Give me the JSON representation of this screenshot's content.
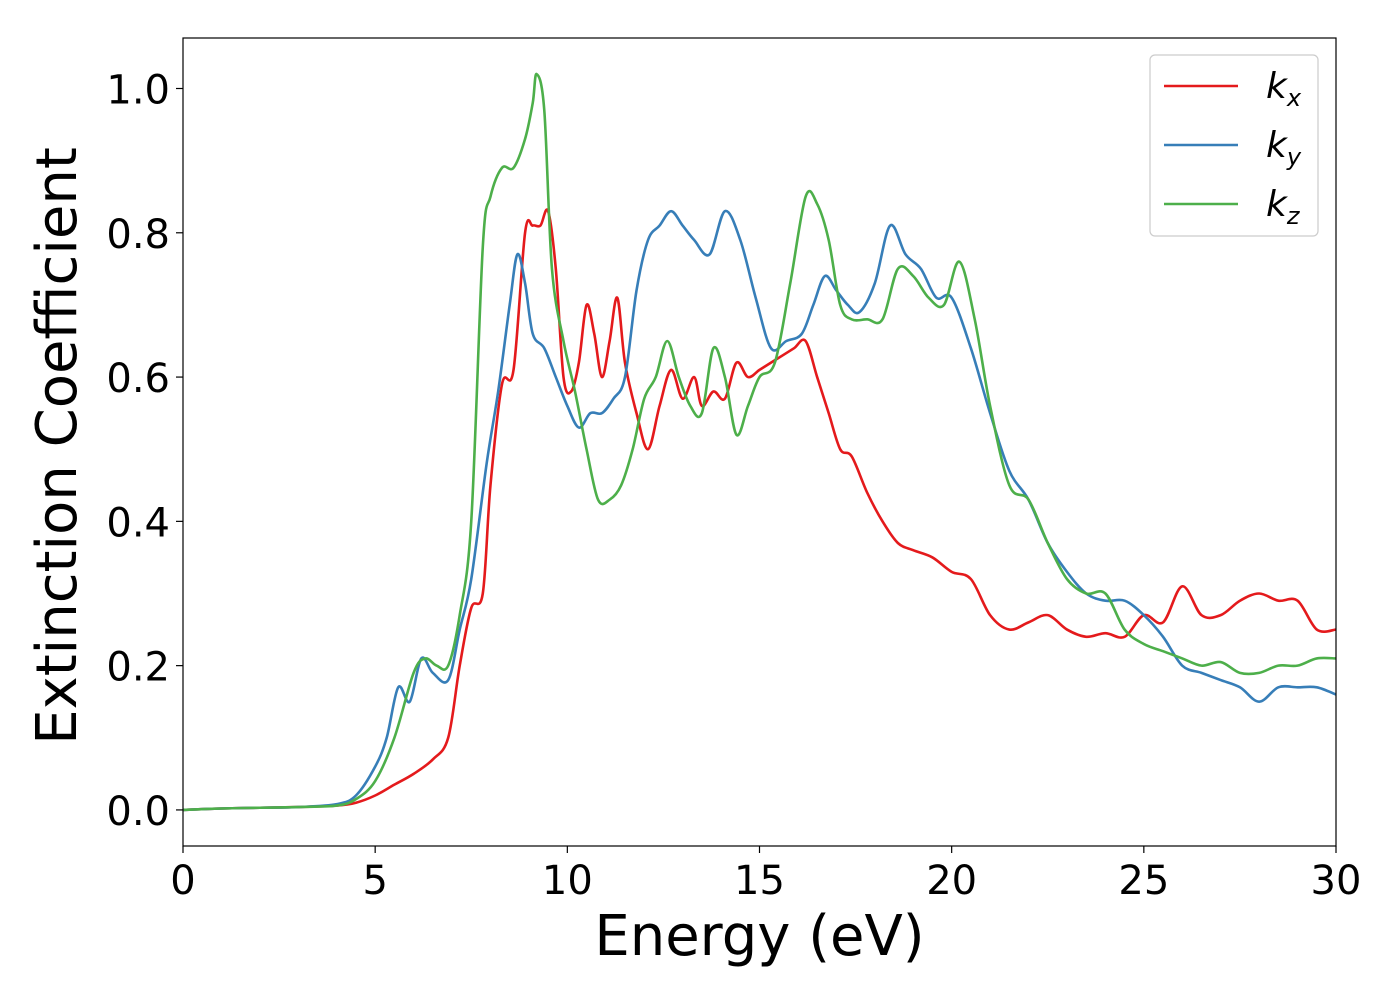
{
  "chart_data": {
    "type": "line",
    "title": "",
    "xlabel": "Energy (eV)",
    "ylabel": "Extinction Coefficient",
    "xlim": [
      0,
      30
    ],
    "ylim": [
      -0.05,
      1.07
    ],
    "xticks": [
      0,
      5,
      10,
      15,
      20,
      25,
      30
    ],
    "yticks": [
      0.0,
      0.2,
      0.4,
      0.6,
      0.8,
      1.0
    ],
    "xtick_labels": [
      "0",
      "5",
      "10",
      "15",
      "20",
      "25",
      "30"
    ],
    "ytick_labels": [
      "0.0",
      "0.2",
      "0.4",
      "0.6",
      "0.8",
      "1.0"
    ],
    "grid": false,
    "legend_position": "top-right",
    "series": [
      {
        "name": "k_x",
        "legend_base": "k",
        "legend_sub": "x",
        "color": "#e41a1c",
        "x": [
          0,
          1,
          2,
          3,
          4,
          4.5,
          5,
          5.5,
          6,
          6.5,
          6.9,
          7.2,
          7.5,
          7.8,
          8,
          8.3,
          8.6,
          8.9,
          9.1,
          9.3,
          9.5,
          9.7,
          9.9,
          10.1,
          10.3,
          10.5,
          10.7,
          10.9,
          11.1,
          11.3,
          11.5,
          11.8,
          12.1,
          12.4,
          12.7,
          13,
          13.3,
          13.5,
          13.8,
          14.1,
          14.4,
          14.7,
          15,
          15.3,
          15.6,
          15.9,
          16.2,
          16.5,
          16.8,
          17.1,
          17.4,
          17.8,
          18.2,
          18.6,
          19,
          19.5,
          20,
          20.5,
          21,
          21.5,
          22,
          22.5,
          23,
          23.5,
          24,
          24.5,
          25,
          25.5,
          26,
          26.5,
          27,
          27.5,
          28,
          28.5,
          29,
          29.5,
          30
        ],
        "y": [
          0.0,
          0.002,
          0.003,
          0.004,
          0.006,
          0.01,
          0.02,
          0.035,
          0.05,
          0.07,
          0.1,
          0.2,
          0.28,
          0.3,
          0.45,
          0.59,
          0.61,
          0.8,
          0.81,
          0.81,
          0.83,
          0.75,
          0.6,
          0.58,
          0.62,
          0.7,
          0.66,
          0.6,
          0.65,
          0.71,
          0.62,
          0.55,
          0.5,
          0.56,
          0.61,
          0.57,
          0.6,
          0.56,
          0.58,
          0.57,
          0.62,
          0.6,
          0.61,
          0.62,
          0.63,
          0.64,
          0.65,
          0.6,
          0.55,
          0.5,
          0.49,
          0.44,
          0.4,
          0.37,
          0.36,
          0.35,
          0.33,
          0.32,
          0.27,
          0.25,
          0.26,
          0.27,
          0.25,
          0.24,
          0.245,
          0.24,
          0.27,
          0.26,
          0.31,
          0.27,
          0.27,
          0.29,
          0.3,
          0.29,
          0.29,
          0.25,
          0.25
        ]
      },
      {
        "name": "k_y",
        "legend_base": "k",
        "legend_sub": "y",
        "color": "#377eb8",
        "x": [
          0,
          1,
          2,
          3,
          4,
          4.5,
          5,
          5.3,
          5.6,
          5.9,
          6.2,
          6.5,
          6.9,
          7.2,
          7.5,
          7.9,
          8.2,
          8.5,
          8.7,
          8.9,
          9.1,
          9.4,
          9.7,
          10,
          10.3,
          10.6,
          10.9,
          11.2,
          11.5,
          11.8,
          12.1,
          12.4,
          12.7,
          13,
          13.3,
          13.7,
          14.1,
          14.5,
          14.9,
          15.3,
          15.7,
          16.1,
          16.4,
          16.7,
          17,
          17.3,
          17.6,
          18,
          18.4,
          18.8,
          19.2,
          19.6,
          20,
          20.5,
          21,
          21.5,
          22,
          22.5,
          23,
          23.5,
          24,
          24.5,
          25,
          25.5,
          26,
          26.5,
          27,
          27.5,
          28,
          28.5,
          29,
          29.5,
          30
        ],
        "y": [
          0.0,
          0.002,
          0.003,
          0.004,
          0.008,
          0.02,
          0.06,
          0.1,
          0.17,
          0.15,
          0.21,
          0.19,
          0.18,
          0.25,
          0.32,
          0.48,
          0.58,
          0.7,
          0.77,
          0.73,
          0.66,
          0.64,
          0.6,
          0.56,
          0.53,
          0.55,
          0.55,
          0.57,
          0.6,
          0.72,
          0.79,
          0.81,
          0.83,
          0.81,
          0.79,
          0.77,
          0.83,
          0.79,
          0.71,
          0.64,
          0.65,
          0.66,
          0.7,
          0.74,
          0.72,
          0.7,
          0.69,
          0.73,
          0.81,
          0.77,
          0.75,
          0.71,
          0.71,
          0.64,
          0.55,
          0.47,
          0.43,
          0.37,
          0.33,
          0.3,
          0.29,
          0.29,
          0.27,
          0.24,
          0.2,
          0.19,
          0.18,
          0.17,
          0.15,
          0.17,
          0.17,
          0.17,
          0.16
        ]
      },
      {
        "name": "k_z",
        "legend_base": "k",
        "legend_sub": "z",
        "color": "#4daf4a",
        "x": [
          0,
          1,
          2,
          3,
          4,
          4.5,
          5,
          5.5,
          6,
          6.3,
          6.6,
          6.9,
          7.2,
          7.5,
          7.8,
          8,
          8.3,
          8.6,
          8.9,
          9.1,
          9.2,
          9.4,
          9.6,
          9.9,
          10.2,
          10.5,
          10.8,
          11.1,
          11.4,
          11.7,
          12,
          12.3,
          12.6,
          12.9,
          13.2,
          13.5,
          13.8,
          14.1,
          14.4,
          14.7,
          15,
          15.4,
          15.8,
          16.2,
          16.5,
          16.8,
          17.1,
          17.4,
          17.8,
          18.2,
          18.6,
          19,
          19.4,
          19.8,
          20.2,
          20.6,
          21,
          21.5,
          22,
          22.5,
          23,
          23.5,
          24,
          24.5,
          25,
          25.5,
          26,
          26.5,
          27,
          27.5,
          28,
          28.5,
          29,
          29.5,
          30
        ],
        "y": [
          0.0,
          0.002,
          0.003,
          0.004,
          0.006,
          0.015,
          0.04,
          0.1,
          0.19,
          0.21,
          0.2,
          0.2,
          0.27,
          0.4,
          0.78,
          0.85,
          0.89,
          0.89,
          0.93,
          0.98,
          1.02,
          0.97,
          0.75,
          0.65,
          0.58,
          0.5,
          0.43,
          0.43,
          0.45,
          0.5,
          0.57,
          0.6,
          0.65,
          0.6,
          0.56,
          0.55,
          0.64,
          0.6,
          0.52,
          0.56,
          0.6,
          0.62,
          0.73,
          0.85,
          0.84,
          0.79,
          0.7,
          0.68,
          0.68,
          0.68,
          0.75,
          0.74,
          0.71,
          0.7,
          0.76,
          0.68,
          0.56,
          0.45,
          0.43,
          0.37,
          0.32,
          0.3,
          0.3,
          0.25,
          0.23,
          0.22,
          0.21,
          0.2,
          0.205,
          0.19,
          0.19,
          0.2,
          0.2,
          0.21,
          0.21
        ]
      }
    ]
  }
}
